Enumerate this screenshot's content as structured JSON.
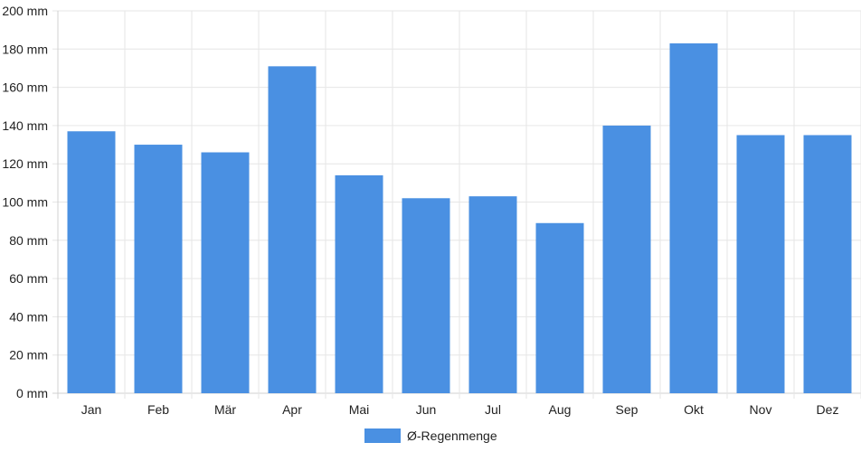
{
  "chart_data": {
    "type": "bar",
    "categories": [
      "Jan",
      "Feb",
      "Mär",
      "Apr",
      "Mai",
      "Jun",
      "Jul",
      "Aug",
      "Sep",
      "Okt",
      "Nov",
      "Dez"
    ],
    "series": [
      {
        "name": "Ø-Regenmenge",
        "color": "#4a90e2",
        "values": [
          137,
          130,
          126,
          171,
          114,
          102,
          103,
          89,
          140,
          183,
          135,
          135
        ]
      }
    ],
    "y_unit": "mm",
    "y_ticks": [
      "0 mm",
      "20 mm",
      "40 mm",
      "60 mm",
      "80 mm",
      "100 mm",
      "120 mm",
      "140 mm",
      "160 mm",
      "180 mm",
      "200 mm"
    ],
    "ylim": [
      0,
      200
    ],
    "grid": true,
    "legend_position": "bottom-center"
  }
}
